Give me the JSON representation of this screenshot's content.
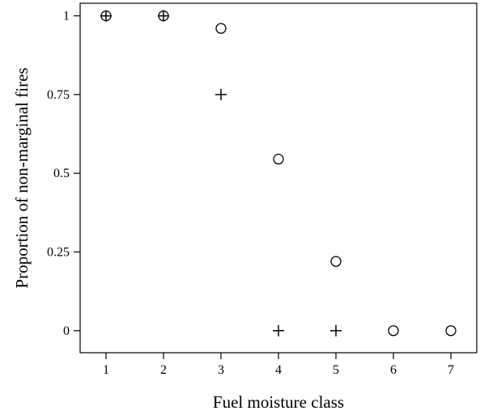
{
  "chart_data": {
    "type": "scatter",
    "title": "",
    "xlabel": "Fuel moisture class",
    "ylabel": "Proportion of non-marginal fires",
    "xlim": [
      0.55,
      7.45
    ],
    "ylim": [
      -0.07,
      1.04
    ],
    "x_ticks": [
      1,
      2,
      3,
      4,
      5,
      6,
      7
    ],
    "x_tick_labels": [
      "1",
      "2",
      "3",
      "4",
      "5",
      "6",
      "7"
    ],
    "y_ticks": [
      0,
      0.25,
      0.5,
      0.75,
      1
    ],
    "y_tick_labels": [
      "0",
      "0.25",
      "0.5",
      "0.75",
      "1"
    ],
    "grid": false,
    "legend": "none",
    "series": [
      {
        "marker": "circle",
        "points": [
          {
            "x": 1,
            "y": 1
          },
          {
            "x": 2,
            "y": 1
          },
          {
            "x": 3,
            "y": 0.96
          },
          {
            "x": 4,
            "y": 0.545
          },
          {
            "x": 5,
            "y": 0.22
          },
          {
            "x": 6,
            "y": 0
          },
          {
            "x": 7,
            "y": 0
          }
        ]
      },
      {
        "marker": "plus",
        "points": [
          {
            "x": 1,
            "y": 1
          },
          {
            "x": 2,
            "y": 1
          },
          {
            "x": 3,
            "y": 0.75
          },
          {
            "x": 4,
            "y": 0
          },
          {
            "x": 5,
            "y": 0
          }
        ]
      }
    ]
  }
}
